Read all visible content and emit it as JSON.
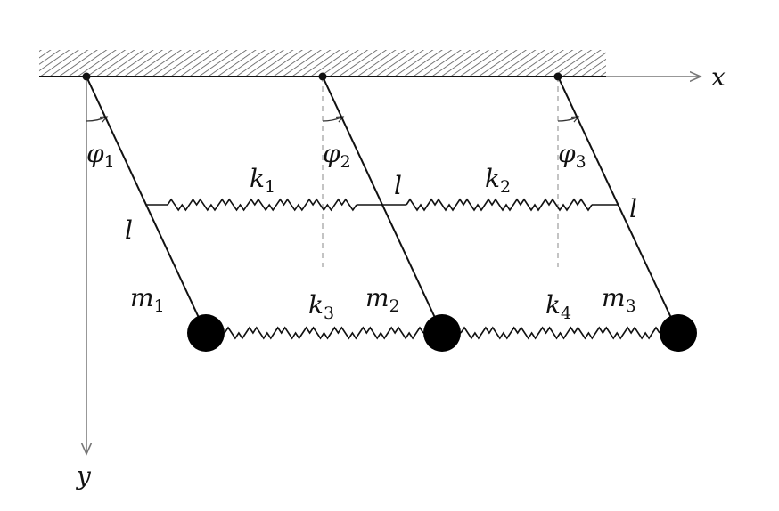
{
  "axes": {
    "x_label": "x",
    "y_label": "y"
  },
  "pendulums": [
    {
      "mass_label": "m",
      "mass_sub": "1",
      "angle_label": "φ",
      "angle_sub": "1",
      "length_label": "l"
    },
    {
      "mass_label": "m",
      "mass_sub": "2",
      "angle_label": "φ",
      "angle_sub": "2",
      "length_label": "l"
    },
    {
      "mass_label": "m",
      "mass_sub": "3",
      "angle_label": "φ",
      "angle_sub": "3",
      "length_label": "l"
    }
  ],
  "upper_springs": [
    {
      "label": "k",
      "sub": "1"
    },
    {
      "label": "k",
      "sub": "2"
    }
  ],
  "lower_springs": [
    {
      "label": "k",
      "sub": "3"
    },
    {
      "label": "k",
      "sub": "4"
    }
  ],
  "colors": {
    "ink": "#111111",
    "axis": "#777777",
    "hatch": "#555555",
    "dashed": "#888888"
  }
}
